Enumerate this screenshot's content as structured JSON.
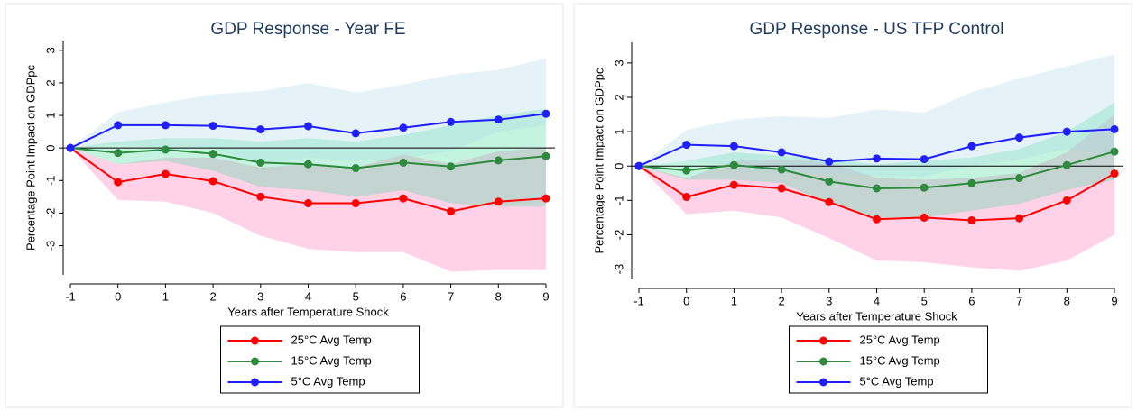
{
  "chart_data": [
    {
      "type": "line",
      "title": "GDP Response - Year FE",
      "x_label": "Years after Temperature Shock",
      "y_label": "Percentage Point Impact on GDPpc",
      "x": [
        -1,
        0,
        1,
        2,
        3,
        4,
        5,
        6,
        7,
        8,
        9
      ],
      "xlim": [
        -1,
        9
      ],
      "xticks": [
        -1,
        0,
        1,
        2,
        3,
        4,
        5,
        6,
        7,
        8,
        9
      ],
      "ylim": [
        -3.9,
        3.3
      ],
      "yticks": [
        -3,
        -2,
        -1,
        0,
        1,
        2,
        3
      ],
      "hline": 0,
      "series": [
        {
          "name": "25°C Avg Temp",
          "color": "#ff0000",
          "band_color": "#ff69b4",
          "values": [
            0,
            -1.05,
            -0.8,
            -1.02,
            -1.5,
            -1.7,
            -1.7,
            -1.55,
            -1.95,
            -1.65,
            -1.55
          ],
          "lower": [
            0,
            -1.6,
            -1.65,
            -2.0,
            -2.7,
            -3.1,
            -3.2,
            -3.2,
            -3.8,
            -3.75,
            -3.75
          ],
          "upper": [
            0,
            -0.5,
            -0.3,
            -0.3,
            -0.6,
            -0.5,
            -0.6,
            -0.2,
            -0.5,
            -0.1,
            0.0
          ]
        },
        {
          "name": "15°C Avg Temp",
          "color": "#2e8b3e",
          "band_color": "#3ddc97",
          "values": [
            0,
            -0.15,
            -0.05,
            -0.18,
            -0.45,
            -0.5,
            -0.62,
            -0.45,
            -0.57,
            -0.38,
            -0.25
          ],
          "lower": [
            0,
            -0.5,
            -0.4,
            -0.7,
            -1.2,
            -1.3,
            -1.5,
            -1.3,
            -1.7,
            -1.8,
            -1.8
          ],
          "upper": [
            0,
            0.2,
            0.3,
            0.3,
            0.2,
            0.3,
            0.2,
            0.4,
            0.7,
            1.0,
            1.2
          ]
        },
        {
          "name": "5°C Avg Temp",
          "color": "#1f1fff",
          "band_color": "#a8d8e8",
          "values": [
            0,
            0.7,
            0.7,
            0.68,
            0.57,
            0.67,
            0.45,
            0.62,
            0.8,
            0.87,
            1.05
          ],
          "lower": [
            0,
            0.1,
            0.0,
            0.0,
            -0.5,
            -0.3,
            -0.4,
            -0.3,
            -0.1,
            0.5,
            0.7
          ],
          "upper": [
            0,
            1.1,
            1.4,
            1.65,
            1.75,
            2.0,
            1.7,
            1.95,
            2.25,
            2.4,
            2.75
          ]
        }
      ]
    },
    {
      "type": "line",
      "title": "GDP Response - US TFP Control",
      "x_label": "Years after Temperature Shock",
      "y_label": "Percentage Point Impact on GDPpc",
      "x": [
        -1,
        0,
        1,
        2,
        3,
        4,
        5,
        6,
        7,
        8,
        9
      ],
      "xlim": [
        -1,
        9
      ],
      "xticks": [
        -1,
        0,
        1,
        2,
        3,
        4,
        5,
        6,
        7,
        8,
        9
      ],
      "ylim": [
        -3.3,
        3.6
      ],
      "yticks": [
        -3,
        -2,
        -1,
        0,
        1,
        2,
        3
      ],
      "hline": 0,
      "series": [
        {
          "name": "25°C Avg Temp",
          "color": "#ff0000",
          "band_color": "#ff69b4",
          "values": [
            0,
            -0.9,
            -0.55,
            -0.65,
            -1.05,
            -1.55,
            -1.5,
            -1.58,
            -1.52,
            -1.0,
            -0.22
          ],
          "lower": [
            0,
            -1.4,
            -1.3,
            -1.5,
            -2.1,
            -2.75,
            -2.8,
            -2.95,
            -3.05,
            -2.75,
            -2.0
          ],
          "upper": [
            0,
            -0.35,
            0.15,
            0.2,
            0.1,
            -0.35,
            -0.4,
            -0.35,
            -0.2,
            0.4,
            1.5
          ]
        },
        {
          "name": "15°C Avg Temp",
          "color": "#2e8b3e",
          "band_color": "#3ddc97",
          "values": [
            0,
            -0.13,
            0.03,
            -0.1,
            -0.45,
            -0.65,
            -0.63,
            -0.5,
            -0.35,
            0.03,
            0.42
          ],
          "lower": [
            0,
            -0.4,
            -0.4,
            -0.5,
            -1.1,
            -1.5,
            -1.5,
            -1.3,
            -1.1,
            -0.7,
            -0.4
          ],
          "upper": [
            0,
            0.15,
            0.4,
            0.3,
            0.2,
            0.05,
            0.15,
            0.25,
            0.5,
            1.0,
            1.85
          ]
        },
        {
          "name": "5°C Avg Temp",
          "color": "#1f1fff",
          "band_color": "#a8d8e8",
          "values": [
            0,
            0.62,
            0.58,
            0.4,
            0.13,
            0.22,
            0.2,
            0.58,
            0.83,
            1.0,
            1.07
          ],
          "lower": [
            0,
            0.15,
            0.0,
            -0.2,
            -0.2,
            -0.3,
            -0.3,
            0.0,
            0.2,
            0.5,
            0.3
          ],
          "upper": [
            0,
            1.05,
            1.35,
            1.45,
            1.4,
            1.65,
            1.55,
            2.15,
            2.55,
            2.9,
            3.25
          ]
        }
      ]
    }
  ]
}
